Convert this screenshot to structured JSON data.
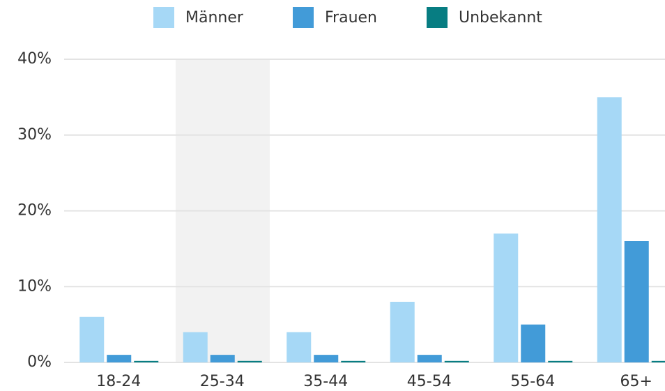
{
  "chart_data": {
    "type": "bar",
    "categories": [
      "18-24",
      "25-34",
      "35-44",
      "45-54",
      "55-64",
      "65+"
    ],
    "series": [
      {
        "name": "Männer",
        "color": "#a6d8f6",
        "values": [
          6,
          4,
          4,
          8,
          17,
          35
        ]
      },
      {
        "name": "Frauen",
        "color": "#429bd8",
        "values": [
          1,
          1,
          1,
          1,
          5,
          16
        ]
      },
      {
        "name": "Unbekannt",
        "color": "#077d82",
        "values": [
          0.2,
          0.2,
          0.2,
          0.2,
          0.2,
          0.2
        ]
      }
    ],
    "ylim": [
      0,
      40
    ],
    "yticks": [
      {
        "value": 0,
        "label": "0%"
      },
      {
        "value": 10,
        "label": "10%"
      },
      {
        "value": 20,
        "label": "20%"
      },
      {
        "value": 30,
        "label": "30%"
      },
      {
        "value": 40,
        "label": "40%"
      }
    ],
    "grid": true,
    "legend": "top"
  }
}
